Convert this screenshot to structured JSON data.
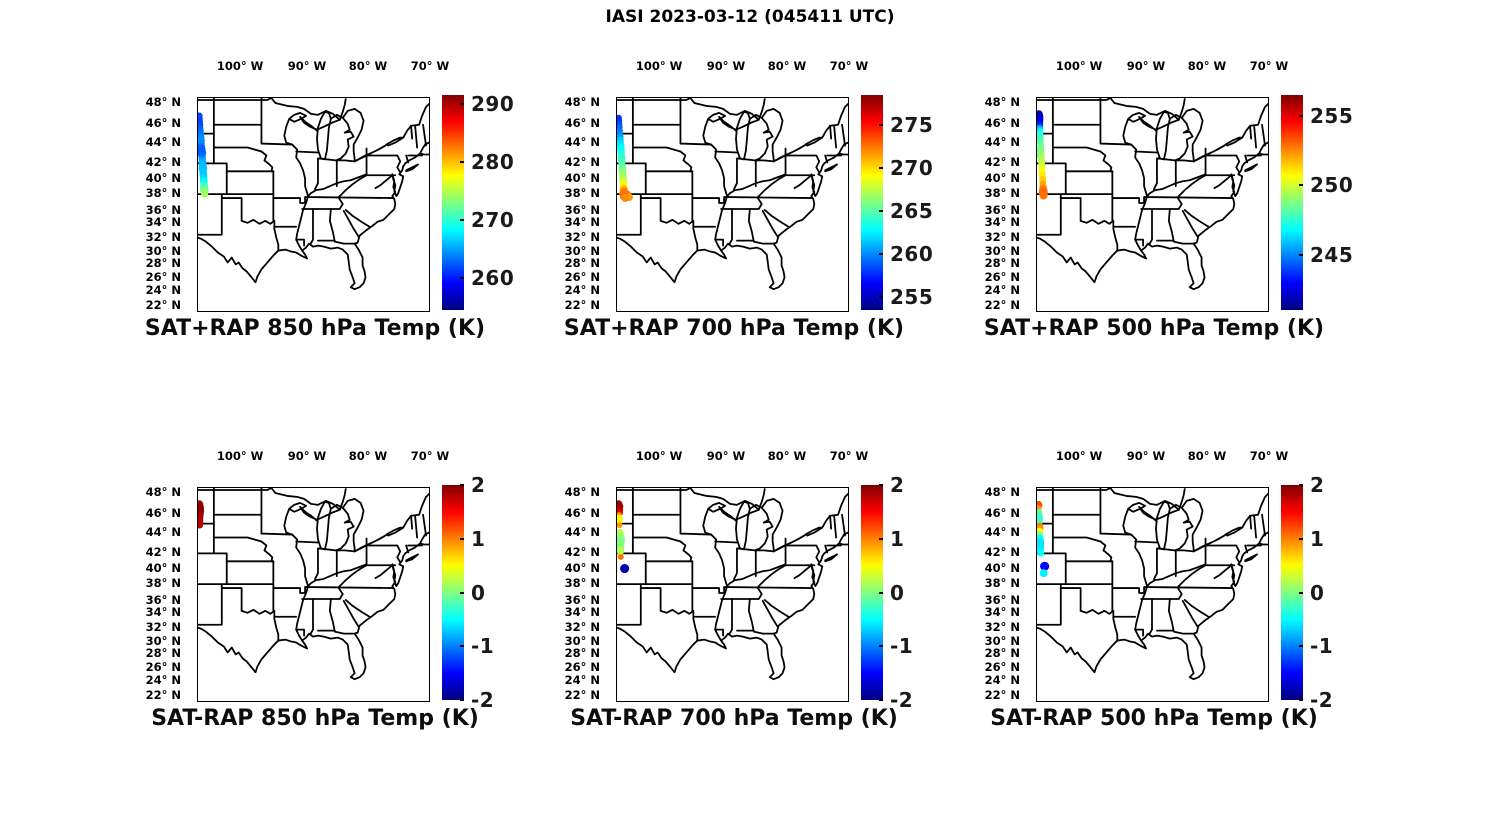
{
  "figure_title": "IASI 2023-03-12 (045411 UTC)",
  "chart_data": {
    "type": "scatter",
    "grid": "2 rows x 3 columns of geographic scatter maps with jet colorbars",
    "colormap": "jet",
    "map_extent": {
      "lon_west_deg": 106.5,
      "lon_east_deg": 70.0,
      "lat_north_deg": 49.4,
      "lat_south_deg": 21.9
    },
    "lon_tick_labels": [
      "100° W",
      "90° W",
      "80° W",
      "70° W"
    ],
    "lon_tick_pos_pct": [
      18.5,
      47.2,
      73.4,
      100
    ],
    "lat_tick_labels": [
      "48° N",
      "46° N",
      "44° N",
      "42° N",
      "40° N",
      "38° N",
      "36° N",
      "34° N",
      "32° N",
      "30° N",
      "28° N",
      "26° N",
      "24° N",
      "22° N"
    ],
    "lat_tick_pos_pct": [
      2.3,
      12.1,
      20.9,
      30.2,
      37.7,
      44.7,
      52.6,
      58.1,
      65.1,
      71.6,
      77.2,
      83.7,
      89.8,
      96.7
    ],
    "panels": [
      {
        "title": "SAT+RAP 850 hPa Temp (K)",
        "colorbar": {
          "vmin": 254.5,
          "vmax": 291.5,
          "tick_values": [
            290,
            280,
            270,
            260
          ]
        },
        "points": [
          {
            "lat": 47.1,
            "lon": 106.3,
            "v": 261.5,
            "r": 3.4
          },
          {
            "lat": 46.7,
            "lon": 106.27,
            "v": 262,
            "r": 3.4
          },
          {
            "lat": 46.3,
            "lon": 106.23,
            "v": 261.5,
            "r": 3.4
          },
          {
            "lat": 45.9,
            "lon": 106.2,
            "v": 262,
            "r": 3.4
          },
          {
            "lat": 45.5,
            "lon": 106.17,
            "v": 262.5,
            "r": 3.4
          },
          {
            "lat": 45.1,
            "lon": 106.13,
            "v": 263,
            "r": 3.4
          },
          {
            "lat": 44.7,
            "lon": 106.1,
            "v": 263.5,
            "r": 3.6
          },
          {
            "lat": 44.3,
            "lon": 106.06,
            "v": 264,
            "r": 3.8
          },
          {
            "lat": 43.9,
            "lon": 106.03,
            "v": 264.5,
            "r": 4
          },
          {
            "lat": 43.5,
            "lon": 106.0,
            "v": 264,
            "r": 3.6
          },
          {
            "lat": 43.1,
            "lon": 105.96,
            "v": 263,
            "r": 3.8
          },
          {
            "lat": 42.7,
            "lon": 105.93,
            "v": 262.5,
            "r": 4.2
          },
          {
            "lat": 42.3,
            "lon": 105.9,
            "v": 262.5,
            "r": 4.4
          },
          {
            "lat": 41.9,
            "lon": 105.86,
            "v": 263,
            "r": 3.8
          },
          {
            "lat": 41.5,
            "lon": 105.83,
            "v": 264.5,
            "r": 3.6
          },
          {
            "lat": 41.1,
            "lon": 105.8,
            "v": 265.5,
            "r": 4
          },
          {
            "lat": 40.7,
            "lon": 105.76,
            "v": 266,
            "r": 3.8
          },
          {
            "lat": 40.3,
            "lon": 105.73,
            "v": 266,
            "r": 4.4
          },
          {
            "lat": 39.9,
            "lon": 105.7,
            "v": 266.5,
            "r": 3.8
          },
          {
            "lat": 39.5,
            "lon": 105.66,
            "v": 266.5,
            "r": 4
          },
          {
            "lat": 39.1,
            "lon": 105.63,
            "v": 267,
            "r": 3.8
          },
          {
            "lat": 38.7,
            "lon": 105.59,
            "v": 268,
            "r": 4
          },
          {
            "lat": 38.3,
            "lon": 105.56,
            "v": 269.5,
            "r": 3.8
          },
          {
            "lat": 37.9,
            "lon": 105.53,
            "v": 271,
            "r": 4.2
          },
          {
            "lat": 37.5,
            "lon": 105.49,
            "v": 272.5,
            "r": 4.4
          },
          {
            "lat": 37.2,
            "lon": 105.47,
            "v": 273.5,
            "r": 4
          },
          {
            "lat": 37.0,
            "lon": 105.45,
            "v": 274,
            "r": 3.6
          }
        ]
      },
      {
        "title": "SAT+RAP 700 hPa Temp (K)",
        "colorbar": {
          "vmin": 253.5,
          "vmax": 278.5,
          "tick_values": [
            275,
            270,
            265,
            260,
            255
          ]
        },
        "points": [
          {
            "lat": 46.8,
            "lon": 106.25,
            "v": 258,
            "r": 3.4
          },
          {
            "lat": 46.4,
            "lon": 106.21,
            "v": 258,
            "r": 3.4
          },
          {
            "lat": 46.0,
            "lon": 106.18,
            "v": 258.5,
            "r": 3.4
          },
          {
            "lat": 45.6,
            "lon": 106.14,
            "v": 259,
            "r": 3.4
          },
          {
            "lat": 45.2,
            "lon": 106.11,
            "v": 259.5,
            "r": 3.4
          },
          {
            "lat": 44.8,
            "lon": 106.07,
            "v": 260,
            "r": 3.4
          },
          {
            "lat": 44.4,
            "lon": 106.03,
            "v": 260.5,
            "r": 3.6
          },
          {
            "lat": 44.0,
            "lon": 106.0,
            "v": 261.5,
            "r": 3.6
          },
          {
            "lat": 43.6,
            "lon": 105.96,
            "v": 262,
            "r": 3.6
          },
          {
            "lat": 43.2,
            "lon": 105.93,
            "v": 262.5,
            "r": 3.8
          },
          {
            "lat": 42.8,
            "lon": 105.89,
            "v": 263,
            "r": 4
          },
          {
            "lat": 42.4,
            "lon": 105.85,
            "v": 263.5,
            "r": 3.8
          },
          {
            "lat": 42.0,
            "lon": 105.82,
            "v": 264,
            "r": 3.6
          },
          {
            "lat": 41.6,
            "lon": 105.78,
            "v": 264,
            "r": 4
          },
          {
            "lat": 41.2,
            "lon": 105.75,
            "v": 264.5,
            "r": 3.8
          },
          {
            "lat": 40.8,
            "lon": 105.71,
            "v": 265,
            "r": 3.6
          },
          {
            "lat": 40.4,
            "lon": 105.67,
            "v": 265.5,
            "r": 3.8
          },
          {
            "lat": 40.0,
            "lon": 105.64,
            "v": 266,
            "r": 4
          },
          {
            "lat": 39.6,
            "lon": 105.6,
            "v": 266.5,
            "r": 3.8
          },
          {
            "lat": 39.2,
            "lon": 105.57,
            "v": 267,
            "r": 3.8
          },
          {
            "lat": 38.8,
            "lon": 105.53,
            "v": 267.5,
            "r": 4
          },
          {
            "lat": 38.4,
            "lon": 105.49,
            "v": 268.5,
            "r": 3.8
          },
          {
            "lat": 38.0,
            "lon": 105.46,
            "v": 269.5,
            "r": 3.8
          },
          {
            "lat": 37.6,
            "lon": 105.42,
            "v": 271,
            "r": 4
          },
          {
            "lat": 37.3,
            "lon": 105.4,
            "v": 272,
            "r": 4.4
          },
          {
            "lat": 37.0,
            "lon": 105.37,
            "v": 272.5,
            "r": 5
          },
          {
            "lat": 36.9,
            "lon": 104.95,
            "v": 272.5,
            "r": 4.5
          },
          {
            "lat": 36.7,
            "lon": 105.34,
            "v": 272.5,
            "r": 4.5
          },
          {
            "lat": 36.6,
            "lon": 104.6,
            "v": 271.5,
            "r": 4
          },
          {
            "lat": 36.5,
            "lon": 105.2,
            "v": 272,
            "r": 4
          }
        ]
      },
      {
        "title": "SAT+RAP 500 hPa Temp (K)",
        "colorbar": {
          "vmin": 241.0,
          "vmax": 256.5,
          "tick_values": [
            255,
            250,
            245
          ]
        },
        "points": [
          {
            "lat": 47.3,
            "lon": 106.2,
            "v": 242,
            "r": 4
          },
          {
            "lat": 47.0,
            "lon": 106.18,
            "v": 242,
            "r": 4.4
          },
          {
            "lat": 46.7,
            "lon": 106.16,
            "v": 242,
            "r": 4.2
          },
          {
            "lat": 46.4,
            "lon": 106.14,
            "v": 242.5,
            "r": 4
          },
          {
            "lat": 46.1,
            "lon": 106.12,
            "v": 243,
            "r": 3.8
          },
          {
            "lat": 45.8,
            "lon": 106.1,
            "v": 243.5,
            "r": 3.6
          },
          {
            "lat": 45.5,
            "lon": 106.07,
            "v": 245.5,
            "r": 3.4
          },
          {
            "lat": 45.2,
            "lon": 106.05,
            "v": 246.5,
            "r": 3.4
          },
          {
            "lat": 44.9,
            "lon": 106.03,
            "v": 247,
            "r": 3.4
          },
          {
            "lat": 44.6,
            "lon": 106.01,
            "v": 247.5,
            "r": 3.4
          },
          {
            "lat": 44.3,
            "lon": 105.99,
            "v": 247.5,
            "r": 3.4
          },
          {
            "lat": 44.0,
            "lon": 105.97,
            "v": 248,
            "r": 3.4
          },
          {
            "lat": 43.7,
            "lon": 105.95,
            "v": 248,
            "r": 3.4
          },
          {
            "lat": 43.4,
            "lon": 105.93,
            "v": 248.5,
            "r": 3.4
          },
          {
            "lat": 43.1,
            "lon": 105.91,
            "v": 248.5,
            "r": 3.4
          },
          {
            "lat": 42.8,
            "lon": 105.89,
            "v": 248.5,
            "r": 3.4
          },
          {
            "lat": 42.5,
            "lon": 105.86,
            "v": 249,
            "r": 3.4
          },
          {
            "lat": 42.2,
            "lon": 105.84,
            "v": 249,
            "r": 3.4
          },
          {
            "lat": 41.9,
            "lon": 105.82,
            "v": 249,
            "r": 3.4
          },
          {
            "lat": 41.6,
            "lon": 105.8,
            "v": 249.5,
            "r": 3.4
          },
          {
            "lat": 41.3,
            "lon": 105.78,
            "v": 249.5,
            "r": 3.4
          },
          {
            "lat": 41.0,
            "lon": 105.76,
            "v": 249.5,
            "r": 3.4
          },
          {
            "lat": 40.7,
            "lon": 105.74,
            "v": 250,
            "r": 3.4
          },
          {
            "lat": 40.4,
            "lon": 105.72,
            "v": 250,
            "r": 3.4
          },
          {
            "lat": 40.1,
            "lon": 105.7,
            "v": 250.5,
            "r": 3.4
          },
          {
            "lat": 39.8,
            "lon": 105.68,
            "v": 250.5,
            "r": 3.4
          },
          {
            "lat": 39.5,
            "lon": 105.65,
            "v": 251,
            "r": 3.4
          },
          {
            "lat": 39.2,
            "lon": 105.63,
            "v": 251,
            "r": 3.4
          },
          {
            "lat": 38.9,
            "lon": 105.61,
            "v": 251.5,
            "r": 3.4
          },
          {
            "lat": 38.6,
            "lon": 105.59,
            "v": 251.5,
            "r": 3.4
          },
          {
            "lat": 38.3,
            "lon": 105.57,
            "v": 252,
            "r": 3.4
          },
          {
            "lat": 38.0,
            "lon": 105.55,
            "v": 252,
            "r": 3.6
          },
          {
            "lat": 37.7,
            "lon": 105.53,
            "v": 252.5,
            "r": 4
          },
          {
            "lat": 37.4,
            "lon": 105.51,
            "v": 252.8,
            "r": 4.4
          },
          {
            "lat": 37.1,
            "lon": 105.49,
            "v": 253,
            "r": 4.6
          },
          {
            "lat": 36.8,
            "lon": 105.46,
            "v": 252.8,
            "r": 4
          },
          {
            "lat": 42.6,
            "lon": 106.75,
            "v": 248.5,
            "r": 3.5
          },
          {
            "lat": 41.9,
            "lon": 106.85,
            "v": 248,
            "r": 3.5
          }
        ]
      },
      {
        "title": "SAT-RAP 850 hPa Temp (K)",
        "colorbar": {
          "vmin": -2,
          "vmax": 2,
          "tick_values": [
            2,
            1,
            0,
            -1,
            -2
          ]
        },
        "points": [
          {
            "lat": 47.3,
            "lon": 106.3,
            "v": 1.85,
            "r": 4
          },
          {
            "lat": 47.0,
            "lon": 106.28,
            "v": 1.95,
            "r": 4.4
          },
          {
            "lat": 46.7,
            "lon": 106.25,
            "v": 2.0,
            "r": 4.5
          },
          {
            "lat": 46.4,
            "lon": 106.22,
            "v": 1.95,
            "r": 4.4
          },
          {
            "lat": 46.1,
            "lon": 106.25,
            "v": 1.9,
            "r": 4.2
          },
          {
            "lat": 45.8,
            "lon": 106.28,
            "v": 1.9,
            "r": 4.2
          },
          {
            "lat": 45.5,
            "lon": 106.3,
            "v": 1.85,
            "r": 4
          },
          {
            "lat": 45.2,
            "lon": 106.28,
            "v": 1.8,
            "r": 4
          },
          {
            "lat": 44.9,
            "lon": 106.26,
            "v": 1.8,
            "r": 3.6
          },
          {
            "lat": 44.6,
            "lon": 106.24,
            "v": 1.75,
            "r": 3.4
          }
        ]
      },
      {
        "title": "SAT-RAP 700 hPa Temp (K)",
        "colorbar": {
          "vmin": -2,
          "vmax": 2,
          "tick_values": [
            2,
            1,
            0,
            -1,
            -2
          ]
        },
        "points": [
          {
            "lat": 47.3,
            "lon": 106.25,
            "v": 1.8,
            "r": 4
          },
          {
            "lat": 47.0,
            "lon": 106.24,
            "v": 1.9,
            "r": 4.6
          },
          {
            "lat": 46.6,
            "lon": 106.22,
            "v": 1.85,
            "r": 4.4
          },
          {
            "lat": 46.2,
            "lon": 106.2,
            "v": 1.6,
            "r": 4
          },
          {
            "lat": 45.9,
            "lon": 106.18,
            "v": 0.9,
            "r": 3
          },
          {
            "lat": 45.5,
            "lon": 106.16,
            "v": 0.55,
            "r": 3.6
          },
          {
            "lat": 45.1,
            "lon": 106.14,
            "v": 0.5,
            "r": 3.4
          },
          {
            "lat": 44.6,
            "lon": 106.12,
            "v": 0.9,
            "r": 3
          },
          {
            "lat": 43.6,
            "lon": 106.07,
            "v": 0.25,
            "r": 4
          },
          {
            "lat": 43.2,
            "lon": 106.05,
            "v": 0.15,
            "r": 4.6
          },
          {
            "lat": 42.8,
            "lon": 106.03,
            "v": 0.05,
            "r": 5
          },
          {
            "lat": 42.4,
            "lon": 106.01,
            "v": -0.05,
            "r": 4.6
          },
          {
            "lat": 42.0,
            "lon": 105.99,
            "v": 0.05,
            "r": 4.2
          },
          {
            "lat": 41.6,
            "lon": 105.97,
            "v": 0.1,
            "r": 4
          },
          {
            "lat": 41.2,
            "lon": 105.95,
            "v": 0.2,
            "r": 3.6
          },
          {
            "lat": 42.1,
            "lon": 106.8,
            "v": -0.5,
            "r": 3
          },
          {
            "lat": 40.5,
            "lon": 105.9,
            "v": 1.05,
            "r": 3
          },
          {
            "lat": 39.0,
            "lon": 105.3,
            "v": -1.8,
            "r": 4.6
          }
        ]
      },
      {
        "title": "SAT-RAP 500 hPa Temp (K)",
        "colorbar": {
          "vmin": -2,
          "vmax": 2,
          "tick_values": [
            2,
            1,
            0,
            -1,
            -2
          ]
        },
        "points": [
          {
            "lat": 47.2,
            "lon": 106.3,
            "v": 1.2,
            "r": 4.2
          },
          {
            "lat": 46.8,
            "lon": 106.28,
            "v": 0.9,
            "r": 3
          },
          {
            "lat": 46.2,
            "lon": 106.24,
            "v": -0.15,
            "r": 3.6
          },
          {
            "lat": 45.8,
            "lon": 106.22,
            "v": -0.25,
            "r": 4
          },
          {
            "lat": 45.4,
            "lon": 106.19,
            "v": -0.3,
            "r": 4
          },
          {
            "lat": 45.0,
            "lon": 106.17,
            "v": -0.25,
            "r": 3.6
          },
          {
            "lat": 44.4,
            "lon": 106.13,
            "v": 1.0,
            "r": 4
          },
          {
            "lat": 44.1,
            "lon": 106.11,
            "v": 0.9,
            "r": 4
          },
          {
            "lat": 43.8,
            "lon": 106.1,
            "v": 0.5,
            "r": 3.6
          },
          {
            "lat": 43.4,
            "lon": 106.07,
            "v": 0.1,
            "r": 3.6
          },
          {
            "lat": 43.0,
            "lon": 106.05,
            "v": -0.4,
            "r": 3.6
          },
          {
            "lat": 42.6,
            "lon": 106.02,
            "v": -0.55,
            "r": 4
          },
          {
            "lat": 42.2,
            "lon": 106.0,
            "v": -0.6,
            "r": 4
          },
          {
            "lat": 41.8,
            "lon": 105.98,
            "v": -0.6,
            "r": 4
          },
          {
            "lat": 41.4,
            "lon": 105.95,
            "v": -0.55,
            "r": 3.6
          },
          {
            "lat": 41.0,
            "lon": 105.93,
            "v": -0.5,
            "r": 3.4
          },
          {
            "lat": 42.4,
            "lon": 106.7,
            "v": -0.6,
            "r": 3.5
          },
          {
            "lat": 39.3,
            "lon": 105.3,
            "v": -1.5,
            "r": 4.6
          },
          {
            "lat": 38.4,
            "lon": 105.45,
            "v": -0.55,
            "r": 4
          }
        ]
      }
    ]
  }
}
